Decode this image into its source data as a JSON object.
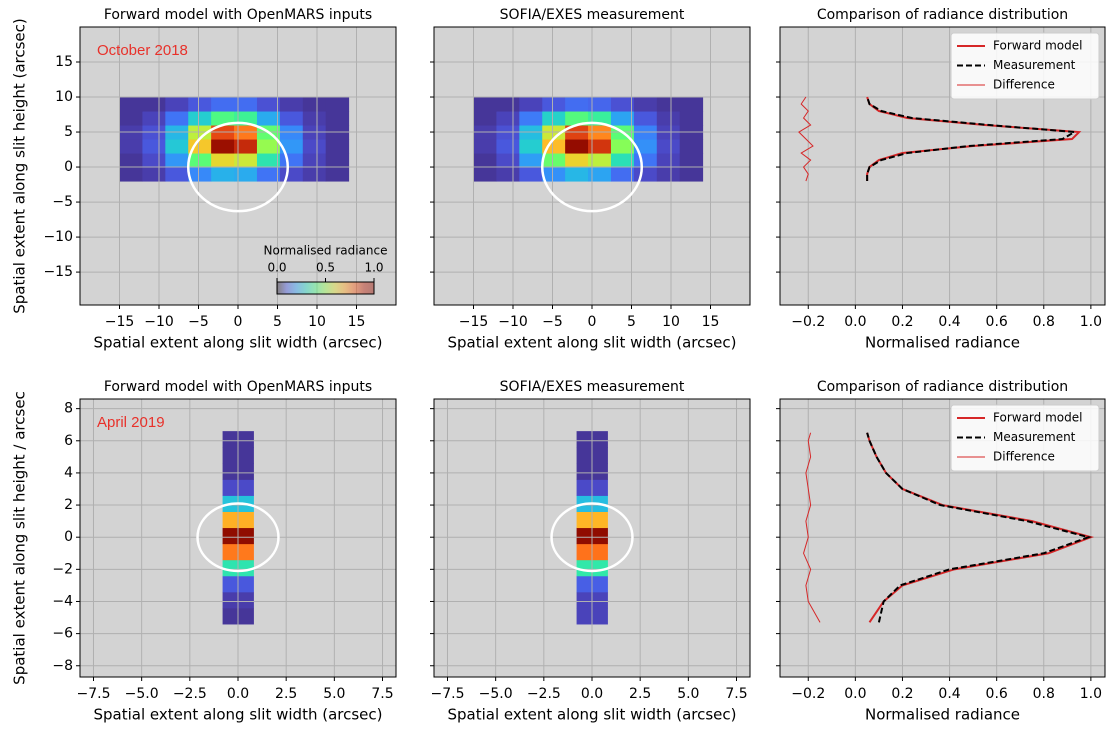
{
  "chart_data": [
    {
      "type": "heatmap",
      "title": "Forward model with OpenMARS inputs",
      "xlabel": "Spatial extent along slit width (arcsec)",
      "ylabel": "Spatial extent along slit height (arcsec)",
      "annotation": "October 2018",
      "annotation_color": "#e8312a",
      "colormap": "turbo",
      "grid": true,
      "xlim": [
        -20,
        20
      ],
      "ylim": [
        -19.7,
        20
      ],
      "xticks": [
        {
          "value": -15,
          "label": "−15"
        },
        {
          "value": -10,
          "label": "−10"
        },
        {
          "value": -5,
          "label": "−5"
        },
        0,
        5,
        10,
        15
      ],
      "yticks": [
        {
          "value": -15,
          "label": "−15"
        },
        {
          "value": -10,
          "label": "−10"
        },
        {
          "value": -5,
          "label": "−5"
        },
        0,
        5,
        10,
        15
      ],
      "x_edges": [
        -15,
        -12.1,
        -9.2,
        -6.3,
        -3.4,
        -0.5,
        2.4,
        5.3,
        8.2,
        11.1,
        14
      ],
      "y_edges": [
        -2,
        0,
        2,
        4,
        6,
        8,
        10
      ],
      "z": [
        [
          0.05,
          0.06,
          0.1,
          0.17,
          0.23,
          0.22,
          0.14,
          0.08,
          0.06,
          0.05
        ],
        [
          0.05,
          0.08,
          0.19,
          0.42,
          0.61,
          0.57,
          0.33,
          0.14,
          0.07,
          0.05
        ],
        [
          0.06,
          0.1,
          0.27,
          0.64,
          0.95,
          0.88,
          0.5,
          0.19,
          0.08,
          0.05
        ],
        [
          0.06,
          0.09,
          0.24,
          0.55,
          0.83,
          0.76,
          0.43,
          0.17,
          0.07,
          0.05
        ],
        [
          0.05,
          0.07,
          0.14,
          0.28,
          0.4,
          0.37,
          0.22,
          0.1,
          0.06,
          0.05
        ],
        [
          0.05,
          0.05,
          0.07,
          0.1,
          0.13,
          0.13,
          0.09,
          0.06,
          0.05,
          0.05
        ]
      ],
      "disk": {
        "x": 0,
        "y": 0,
        "r": 6.3
      },
      "colorbar": {
        "label": "Normalised radiance",
        "lim": [
          0,
          1
        ],
        "ticks": [
          {
            "value": 0,
            "label": "0.0"
          },
          0.5,
          {
            "value": 1,
            "label": "1.0"
          }
        ]
      }
    },
    {
      "type": "heatmap",
      "title": "SOFIA/EXES measurement",
      "xlabel": "Spatial extent along slit width (arcsec)",
      "colormap": "turbo",
      "grid": true,
      "xlim": [
        -20,
        20
      ],
      "xticks": [
        {
          "value": -15,
          "label": "−15"
        },
        {
          "value": -10,
          "label": "−10"
        },
        {
          "value": -5,
          "label": "−5"
        },
        0,
        5,
        10,
        15
      ],
      "x_edges": [
        -15,
        -12.1,
        -9.2,
        -6.3,
        -3.4,
        -0.5,
        2.4,
        5.3,
        8.2,
        11.1,
        14
      ],
      "y_edges": [
        -2,
        0,
        2,
        4,
        6,
        8,
        10
      ],
      "z": [
        [
          0.05,
          0.06,
          0.1,
          0.18,
          0.24,
          0.21,
          0.13,
          0.08,
          0.06,
          0.05
        ],
        [
          0.05,
          0.08,
          0.2,
          0.44,
          0.62,
          0.55,
          0.32,
          0.14,
          0.07,
          0.05
        ],
        [
          0.06,
          0.1,
          0.28,
          0.66,
          0.97,
          0.86,
          0.48,
          0.18,
          0.08,
          0.05
        ],
        [
          0.06,
          0.09,
          0.25,
          0.57,
          0.84,
          0.74,
          0.42,
          0.16,
          0.07,
          0.05
        ],
        [
          0.05,
          0.07,
          0.15,
          0.29,
          0.41,
          0.36,
          0.21,
          0.1,
          0.06,
          0.05
        ],
        [
          0.05,
          0.05,
          0.07,
          0.1,
          0.13,
          0.12,
          0.09,
          0.06,
          0.05,
          0.05
        ]
      ],
      "disk": {
        "x": 0,
        "y": 0,
        "r": 6.3
      }
    },
    {
      "type": "line",
      "title": "Comparison of radiance distribution",
      "xlabel": "Normalised radiance",
      "grid": true,
      "legend": "upper right",
      "xlim": [
        -0.32,
        1.06
      ],
      "xticks": [
        {
          "value": -0.2,
          "label": "−0.2"
        },
        {
          "value": 0,
          "label": "0.0"
        },
        0.2,
        0.4,
        0.6,
        0.8,
        {
          "value": 1,
          "label": "1.0"
        }
      ],
      "y": [
        -2,
        -1,
        0,
        1,
        2,
        3,
        4,
        5,
        6,
        7,
        8,
        9,
        10
      ],
      "series": [
        {
          "name": "Forward model",
          "color": "#d62728",
          "linestyle": "solid",
          "linewidth": 2,
          "values": [
            0.05,
            0.05,
            0.06,
            0.1,
            0.2,
            0.5,
            0.92,
            0.95,
            0.55,
            0.22,
            0.1,
            0.06,
            0.05
          ]
        },
        {
          "name": "Measurement",
          "color": "#000000",
          "linestyle": "dashed",
          "linewidth": 2,
          "values": [
            0.05,
            0.05,
            0.06,
            0.11,
            0.22,
            0.48,
            0.88,
            0.93,
            0.57,
            0.24,
            0.11,
            0.06,
            0.05
          ]
        },
        {
          "name": "Difference",
          "color": "#d62728",
          "linestyle": "solid",
          "linewidth": 1,
          "values": [
            -0.21,
            -0.2,
            -0.22,
            -0.19,
            -0.23,
            -0.18,
            -0.21,
            -0.24,
            -0.19,
            -0.22,
            -0.2,
            -0.23,
            -0.21
          ]
        }
      ]
    },
    {
      "type": "heatmap",
      "title": "Forward model with OpenMARS inputs",
      "xlabel": "Spatial extent along slit width (arcsec)",
      "ylabel": "Spatial extent along slit height / arcsec",
      "annotation": "April 2019",
      "annotation_color": "#e8312a",
      "colormap": "turbo",
      "grid": true,
      "xlim": [
        -8.2,
        8.2
      ],
      "ylim": [
        -8.7,
        8.6
      ],
      "xticks": [
        {
          "value": -7.5,
          "label": "−7.5"
        },
        {
          "value": -5,
          "label": "−5.0"
        },
        {
          "value": -2.5,
          "label": "−2.5"
        },
        {
          "value": 0,
          "label": "0.0"
        },
        2.5,
        {
          "value": 5,
          "label": "5.0"
        },
        7.5
      ],
      "yticks": [
        {
          "value": -8,
          "label": "−8"
        },
        {
          "value": -6,
          "label": "−6"
        },
        {
          "value": -4,
          "label": "−4"
        },
        {
          "value": -2,
          "label": "−2"
        },
        0,
        2,
        4,
        6,
        8
      ],
      "x_edges": [
        -0.8,
        0.8
      ],
      "y_edges": [
        -5.4,
        -4.4,
        -3.4,
        -2.4,
        -1.4,
        -0.4,
        0.6,
        1.6,
        2.6,
        3.6,
        4.6,
        5.6,
        6.6
      ],
      "z": [
        [
          0.05
        ],
        [
          0.06
        ],
        [
          0.1
        ],
        [
          0.33
        ],
        [
          0.76
        ],
        [
          1.0
        ],
        [
          0.68
        ],
        [
          0.26
        ],
        [
          0.08
        ],
        [
          0.05
        ],
        [
          0.05
        ],
        [
          0.05
        ]
      ],
      "disk": {
        "x": 0,
        "y": 0,
        "r": 2.1
      }
    },
    {
      "type": "heatmap",
      "title": "SOFIA/EXES measurement",
      "xlabel": "Spatial extent along slit width (arcsec)",
      "colormap": "turbo",
      "grid": true,
      "xlim": [
        -8.2,
        8.2
      ],
      "xticks": [
        {
          "value": -7.5,
          "label": "−7.5"
        },
        {
          "value": -5,
          "label": "−5.0"
        },
        {
          "value": -2.5,
          "label": "−2.5"
        },
        {
          "value": 0,
          "label": "0.0"
        },
        2.5,
        {
          "value": 5,
          "label": "5.0"
        },
        7.5
      ],
      "x_edges": [
        -0.8,
        0.8
      ],
      "y_edges": [
        -5.4,
        -4.4,
        -3.4,
        -2.4,
        -1.4,
        -0.4,
        0.6,
        1.6,
        2.6,
        3.6,
        4.6,
        5.6,
        6.6
      ],
      "z": [
        [
          0.07
        ],
        [
          0.07
        ],
        [
          0.11
        ],
        [
          0.34
        ],
        [
          0.77
        ],
        [
          0.99
        ],
        [
          0.67
        ],
        [
          0.25
        ],
        [
          0.08
        ],
        [
          0.05
        ],
        [
          0.05
        ],
        [
          0.05
        ]
      ],
      "disk": {
        "x": 0,
        "y": 0,
        "r": 2.1
      }
    },
    {
      "type": "line",
      "title": "Comparison of radiance distribution",
      "xlabel": "Normalised radiance",
      "grid": true,
      "legend": "upper right",
      "xlim": [
        -0.32,
        1.06
      ],
      "xticks": [
        {
          "value": -0.2,
          "label": "−0.2"
        },
        {
          "value": 0,
          "label": "0.0"
        },
        0.2,
        0.4,
        0.6,
        0.8,
        {
          "value": 1,
          "label": "1.0"
        }
      ],
      "y": [
        -5.3,
        -4,
        -3,
        -2,
        -1,
        0,
        1,
        2,
        3,
        4,
        5,
        6,
        6.5
      ],
      "series": [
        {
          "name": "Forward model",
          "color": "#d62728",
          "linestyle": "solid",
          "linewidth": 2,
          "values": [
            0.06,
            0.12,
            0.2,
            0.42,
            0.82,
            1.0,
            0.75,
            0.37,
            0.2,
            0.13,
            0.09,
            0.06,
            0.05
          ]
        },
        {
          "name": "Measurement",
          "color": "#000000",
          "linestyle": "dashed",
          "linewidth": 2,
          "values": [
            0.1,
            0.12,
            0.19,
            0.4,
            0.8,
            0.99,
            0.73,
            0.36,
            0.2,
            0.13,
            0.09,
            0.06,
            0.05
          ]
        },
        {
          "name": "Difference",
          "color": "#d62728",
          "linestyle": "solid",
          "linewidth": 1,
          "values": [
            -0.15,
            -0.2,
            -0.21,
            -0.19,
            -0.22,
            -0.2,
            -0.21,
            -0.19,
            -0.2,
            -0.21,
            -0.19,
            -0.2,
            -0.19
          ]
        }
      ]
    }
  ]
}
